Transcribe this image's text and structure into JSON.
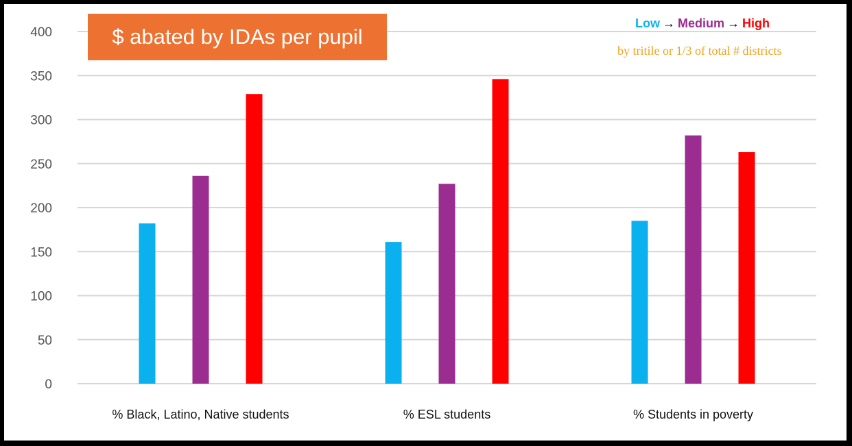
{
  "title": "$ abated by IDAs per pupil",
  "legend": {
    "items": [
      {
        "label": "Low",
        "color": "#0bb0ef"
      },
      {
        "label": "Medium",
        "color": "#9b2c90"
      },
      {
        "label": "High",
        "color": "#ff0000"
      }
    ],
    "arrow": "→"
  },
  "note": "by tritile or 1/3 of total # districts",
  "chart_data": {
    "type": "bar",
    "categories": [
      "% Black, Latino, Native students",
      "% ESL students",
      "% Students in poverty"
    ],
    "series": [
      {
        "name": "Low",
        "color": "#0bb0ef",
        "values": [
          182,
          161,
          185
        ]
      },
      {
        "name": "Medium",
        "color": "#9b2c90",
        "values": [
          236,
          227,
          282
        ]
      },
      {
        "name": "High",
        "color": "#ff0000",
        "values": [
          329,
          346,
          263
        ]
      }
    ],
    "ylim": [
      0,
      400
    ],
    "yticks": [
      0,
      50,
      100,
      150,
      200,
      250,
      300,
      350,
      400
    ],
    "grid": true,
    "legend_position": "top-right"
  }
}
